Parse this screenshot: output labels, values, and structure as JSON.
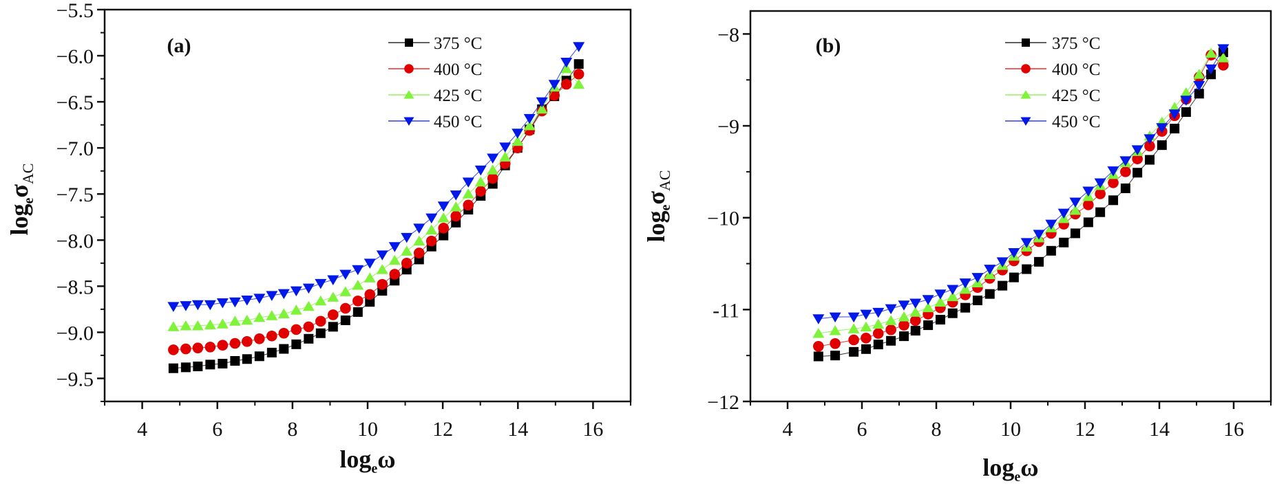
{
  "chart_data": [
    {
      "type": "scatter",
      "panel_label": "(a)",
      "title": "",
      "xlabel": "log_e ω",
      "xlabel_main": "log",
      "xlabel_sub": "e",
      "xlabel_tail": "ω",
      "ylabel": "log_e σ_AC",
      "ylabel_main": "log",
      "ylabel_sub": "e",
      "ylabel_sym": "σ",
      "ylabel_sub2": "AC",
      "xlim": [
        3,
        17
      ],
      "ylim": [
        -9.75,
        -5.5
      ],
      "xticks": [
        4,
        6,
        8,
        10,
        12,
        14,
        16
      ],
      "xtick_labels": [
        "4",
        "6",
        "8",
        "10",
        "12",
        "14",
        "16"
      ],
      "yticks": [
        -5.5,
        -6.0,
        -6.5,
        -7.0,
        -7.5,
        -8.0,
        -8.5,
        -9.0,
        -9.5
      ],
      "ytick_labels": [
        "−5.5",
        "−6.0",
        "−6.5",
        "−7.0",
        "−7.5",
        "−8.0",
        "−8.5",
        "−9.0",
        "−9.5"
      ],
      "grid": false,
      "legend_position": "top-right",
      "x": [
        4.83,
        5.16,
        5.48,
        5.81,
        6.14,
        6.47,
        6.79,
        7.12,
        7.45,
        7.77,
        8.1,
        8.43,
        8.75,
        9.08,
        9.41,
        9.74,
        10.06,
        10.39,
        10.72,
        11.04,
        11.37,
        11.7,
        12.02,
        12.35,
        12.68,
        13.01,
        13.33,
        13.66,
        13.99,
        14.31,
        14.64,
        14.97,
        15.29,
        15.62
      ],
      "series": [
        {
          "name": "375 °C",
          "marker": "square",
          "color": "#000000",
          "values": [
            -9.39,
            -9.38,
            -9.37,
            -9.35,
            -9.34,
            -9.31,
            -9.29,
            -9.26,
            -9.22,
            -9.18,
            -9.13,
            -9.07,
            -9.01,
            -8.94,
            -8.87,
            -8.78,
            -8.67,
            -8.55,
            -8.44,
            -8.32,
            -8.21,
            -8.07,
            -7.95,
            -7.81,
            -7.67,
            -7.52,
            -7.39,
            -7.19,
            -7.0,
            -6.8,
            -6.58,
            -6.44,
            -6.27,
            -6.09
          ]
        },
        {
          "name": "400 °C",
          "marker": "circle",
          "color": "#e00000",
          "values": [
            -9.19,
            -9.18,
            -9.17,
            -9.16,
            -9.14,
            -9.12,
            -9.1,
            -9.07,
            -9.04,
            -9.01,
            -8.97,
            -8.94,
            -8.88,
            -8.81,
            -8.74,
            -8.66,
            -8.59,
            -8.48,
            -8.37,
            -8.25,
            -8.14,
            -8.01,
            -7.87,
            -7.74,
            -7.62,
            -7.47,
            -7.33,
            -7.17,
            -7.0,
            -6.81,
            -6.6,
            -6.43,
            -6.31,
            -6.2
          ]
        },
        {
          "name": "425 °C",
          "marker": "triangle-up",
          "color": "#7ff23a",
          "values": [
            -8.94,
            -8.93,
            -8.93,
            -8.92,
            -8.91,
            -8.88,
            -8.87,
            -8.84,
            -8.82,
            -8.8,
            -8.76,
            -8.72,
            -8.66,
            -8.62,
            -8.56,
            -8.49,
            -8.41,
            -8.32,
            -8.22,
            -8.12,
            -8.01,
            -7.89,
            -7.76,
            -7.64,
            -7.5,
            -7.37,
            -7.24,
            -7.1,
            -6.93,
            -6.76,
            -6.58,
            -6.34,
            -6.14,
            -6.31
          ]
        },
        {
          "name": "450 °C",
          "marker": "triangle-down",
          "color": "#0018e8",
          "values": [
            -8.72,
            -8.71,
            -8.7,
            -8.7,
            -8.68,
            -8.67,
            -8.65,
            -8.63,
            -8.6,
            -8.58,
            -8.55,
            -8.52,
            -8.47,
            -8.43,
            -8.37,
            -8.32,
            -8.25,
            -8.16,
            -8.07,
            -7.97,
            -7.87,
            -7.76,
            -7.63,
            -7.51,
            -7.37,
            -7.24,
            -7.11,
            -6.99,
            -6.84,
            -6.68,
            -6.5,
            -6.31,
            -6.07,
            -5.9
          ]
        }
      ]
    },
    {
      "type": "scatter",
      "panel_label": "(b)",
      "title": "",
      "xlabel": "log_e ω",
      "xlabel_main": "log",
      "xlabel_sub": "e",
      "xlabel_tail": "ω",
      "ylabel": "log_e σ_AC",
      "ylabel_main": "log",
      "ylabel_sub": "e",
      "ylabel_sym": "σ",
      "ylabel_sub2": "AC",
      "xlim": [
        3,
        17
      ],
      "ylim": [
        -12,
        -7.75
      ],
      "xticks": [
        4,
        6,
        8,
        10,
        12,
        14,
        16
      ],
      "xtick_labels": [
        "4",
        "6",
        "8",
        "10",
        "12",
        "14",
        "16"
      ],
      "yticks": [
        -8,
        -9,
        -10,
        -11,
        -12
      ],
      "ytick_labels": [
        "−8",
        "−9",
        "−10",
        "-11",
        "−12"
      ],
      "grid": false,
      "legend_position": "top-right",
      "x": [
        4.83,
        5.28,
        5.78,
        6.11,
        6.44,
        6.78,
        7.13,
        7.44,
        7.78,
        8.11,
        8.44,
        8.78,
        9.11,
        9.44,
        9.78,
        10.09,
        10.43,
        10.76,
        11.09,
        11.43,
        11.74,
        12.09,
        12.41,
        12.76,
        13.09,
        13.41,
        13.74,
        14.07,
        14.41,
        14.72,
        15.07,
        15.39,
        15.72
      ],
      "series": [
        {
          "name": "375 °C",
          "marker": "square",
          "color": "#000000",
          "values": [
            -11.51,
            -11.5,
            -11.46,
            -11.43,
            -11.38,
            -11.34,
            -11.29,
            -11.23,
            -11.17,
            -11.11,
            -11.04,
            -10.98,
            -10.9,
            -10.83,
            -10.74,
            -10.65,
            -10.56,
            -10.48,
            -10.36,
            -10.27,
            -10.17,
            -10.05,
            -9.94,
            -9.81,
            -9.68,
            -9.51,
            -9.37,
            -9.21,
            -9.03,
            -8.85,
            -8.65,
            -8.44,
            -8.2
          ]
        },
        {
          "name": "400 °C",
          "marker": "circle",
          "color": "#e00000",
          "values": [
            -11.4,
            -11.37,
            -11.33,
            -11.31,
            -11.26,
            -11.22,
            -11.17,
            -11.12,
            -11.05,
            -10.98,
            -10.92,
            -10.84,
            -10.76,
            -10.66,
            -10.57,
            -10.47,
            -10.36,
            -10.26,
            -10.17,
            -10.07,
            -9.96,
            -9.86,
            -9.74,
            -9.62,
            -9.5,
            -9.36,
            -9.22,
            -9.06,
            -8.89,
            -8.71,
            -8.47,
            -8.23,
            -8.34
          ]
        },
        {
          "name": "425 °C",
          "marker": "triangle-up",
          "color": "#7ff23a",
          "values": [
            -11.26,
            -11.23,
            -11.21,
            -11.19,
            -11.16,
            -11.12,
            -11.08,
            -11.03,
            -10.98,
            -10.92,
            -10.86,
            -10.78,
            -10.71,
            -10.62,
            -10.52,
            -10.42,
            -10.32,
            -10.22,
            -10.11,
            -10.01,
            -9.92,
            -9.77,
            -9.65,
            -9.53,
            -9.4,
            -9.28,
            -9.11,
            -8.96,
            -8.8,
            -8.64,
            -8.44,
            -8.21,
            -8.26
          ]
        },
        {
          "name": "450 °C",
          "marker": "triangle-down",
          "color": "#0018e8",
          "values": [
            -11.1,
            -11.08,
            -11.08,
            -11.05,
            -11.03,
            -10.99,
            -10.95,
            -10.93,
            -10.89,
            -10.83,
            -10.78,
            -10.71,
            -10.65,
            -10.56,
            -10.48,
            -10.38,
            -10.27,
            -10.18,
            -10.07,
            -9.95,
            -9.83,
            -9.71,
            -9.62,
            -9.49,
            -9.38,
            -9.26,
            -9.14,
            -9.02,
            -8.87,
            -8.72,
            -8.56,
            -8.38,
            -8.16
          ]
        }
      ]
    }
  ]
}
